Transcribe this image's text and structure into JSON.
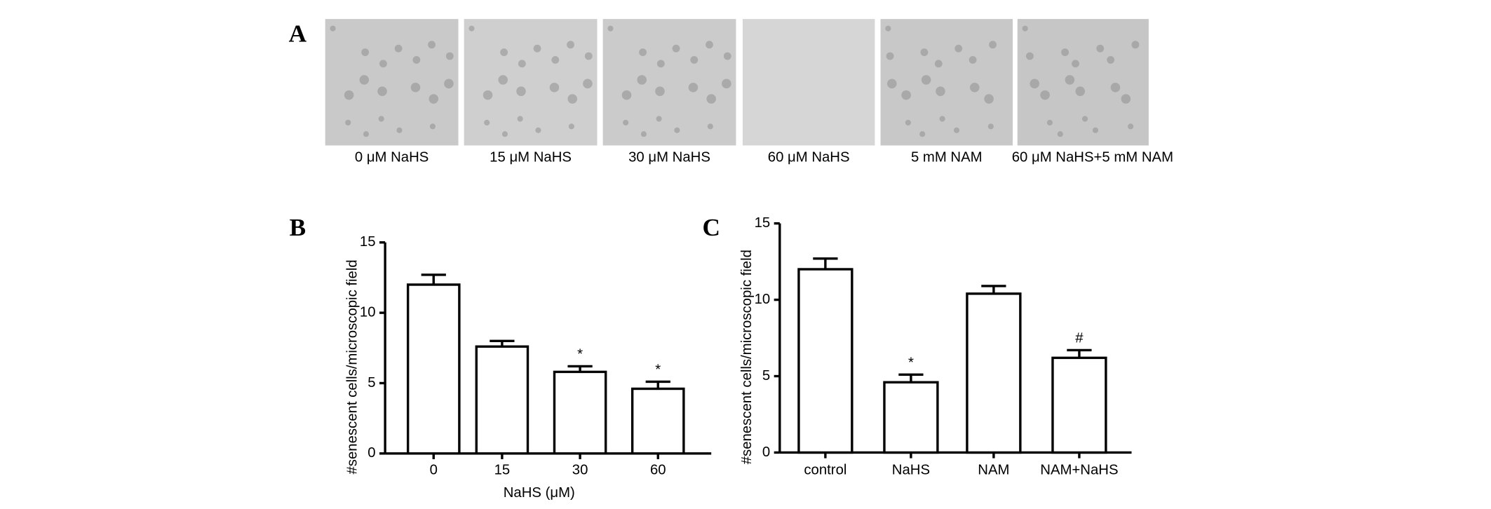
{
  "panels": [
    "A",
    "B",
    "C"
  ],
  "images": [
    "0 μM NaHS",
    "15 μM NaHS",
    "30 μM NaHS",
    "60 μM NaHS",
    "5 mM NAM",
    "60 μM NaHS+5 mM NAM"
  ],
  "chart_data": [
    {
      "type": "bar",
      "y_label": "#senescent cells/microscopic field",
      "x_label": "NaHS (μM)",
      "categories": [
        "0",
        "15",
        "30",
        "60"
      ],
      "values": [
        12,
        7.6,
        5.8,
        4.6
      ],
      "errors": [
        0.7,
        0.4,
        0.4,
        0.5
      ],
      "bar_labels": [
        null,
        null,
        "*",
        "*"
      ],
      "color": "#ffffff",
      "ylim": [
        0,
        15
      ],
      "yticks": [
        0,
        5,
        10,
        15
      ]
    },
    {
      "type": "bar",
      "y_label": "#senescent cells/microscopic field",
      "categories": [
        "control",
        "NaHS",
        "NAM",
        "NAM+NaHS"
      ],
      "values": [
        12,
        4.6,
        10.4,
        6.2
      ],
      "errors": [
        0.7,
        0.5,
        0.5,
        0.5
      ],
      "bar_labels": [
        null,
        "*",
        null,
        "#"
      ],
      "color": "#ffffff",
      "ylim": [
        0,
        15
      ],
      "yticks": [
        0,
        5,
        10,
        15
      ]
    }
  ]
}
